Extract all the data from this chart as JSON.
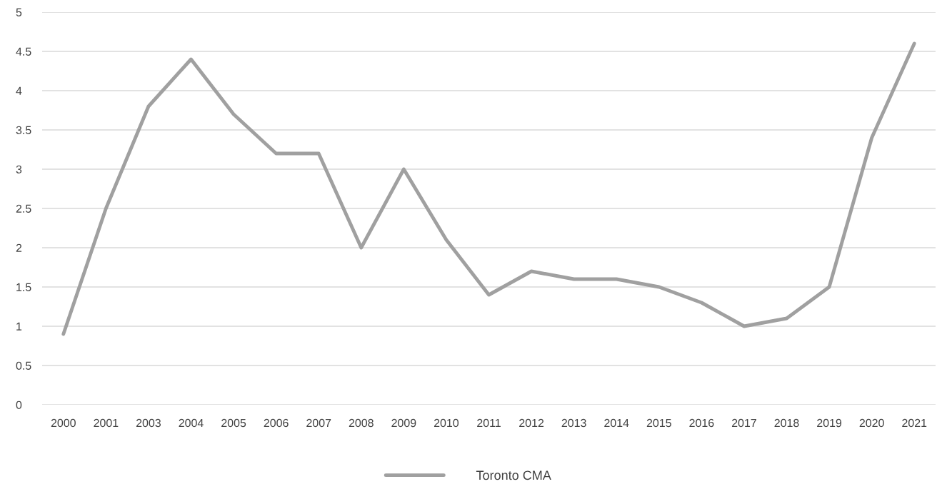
{
  "chart_data": {
    "type": "line",
    "categories": [
      "2000",
      "2001",
      "2003",
      "2004",
      "2005",
      "2006",
      "2007",
      "2008",
      "2009",
      "2010",
      "2011",
      "2012",
      "2013",
      "2014",
      "2015",
      "2016",
      "2017",
      "2018",
      "2019",
      "2020",
      "2021"
    ],
    "series": [
      {
        "name": "Toronto CMA",
        "color": "#a0a0a0",
        "values": [
          0.9,
          2.5,
          3.8,
          4.4,
          3.7,
          3.2,
          3.2,
          2.0,
          3.0,
          2.1,
          1.4,
          1.7,
          1.6,
          1.6,
          1.5,
          1.3,
          1.0,
          1.1,
          1.5,
          3.4,
          4.6
        ]
      }
    ],
    "ylim": [
      0,
      5
    ],
    "yticks": [
      0,
      0.5,
      1,
      1.5,
      2,
      2.5,
      3,
      3.5,
      4,
      4.5,
      5
    ],
    "grid": "y",
    "legend": "bottom",
    "marker": "none",
    "line_style": "solid"
  }
}
